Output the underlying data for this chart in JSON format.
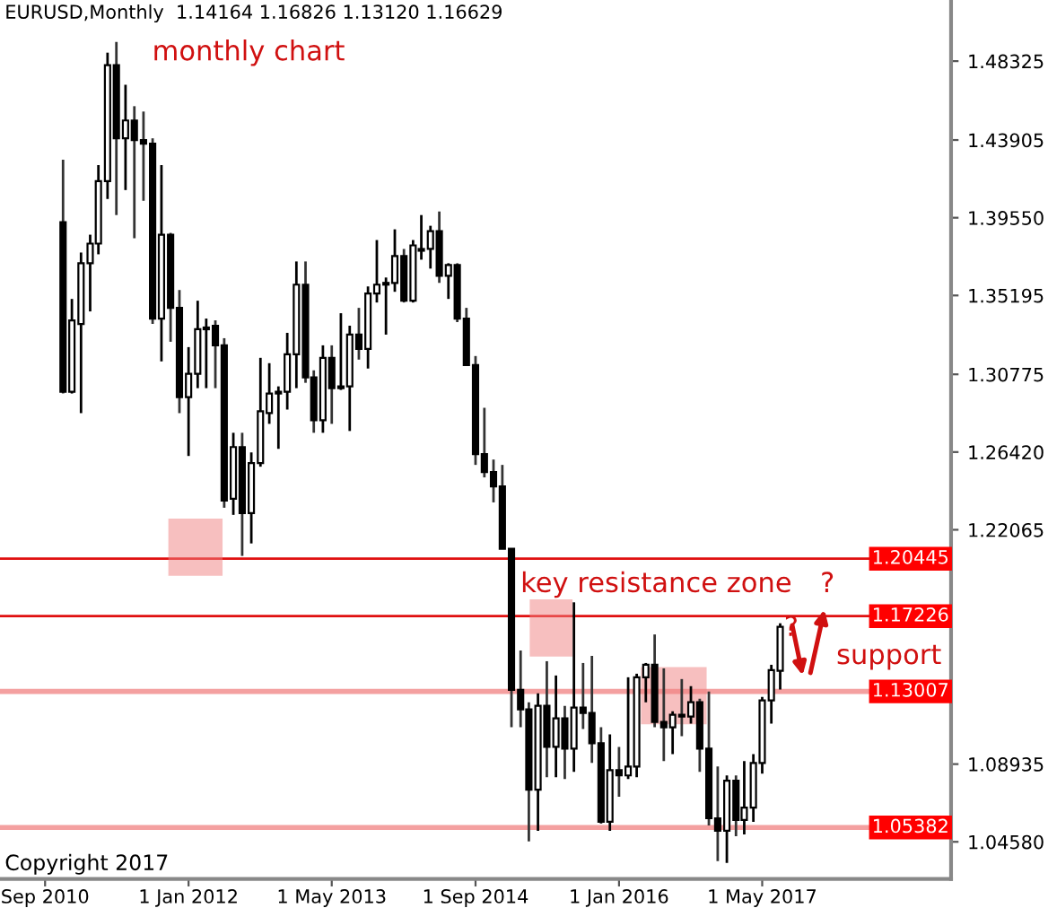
{
  "chart_data": {
    "type": "candlestick",
    "title": "EURUSD,Monthly  1.14164 1.16826 1.13120 1.16629",
    "x": [
      "2010-11",
      "2010-12",
      "2011-01",
      "2011-02",
      "2011-03",
      "2011-04",
      "2011-05",
      "2011-06",
      "2011-07",
      "2011-08",
      "2011-09",
      "2011-10",
      "2011-11",
      "2011-12",
      "2012-01",
      "2012-02",
      "2012-03",
      "2012-04",
      "2012-05",
      "2012-06",
      "2012-07",
      "2012-08",
      "2012-09",
      "2012-10",
      "2012-11",
      "2012-12",
      "2013-01",
      "2013-02",
      "2013-03",
      "2013-04",
      "2013-05",
      "2013-06",
      "2013-07",
      "2013-08",
      "2013-09",
      "2013-10",
      "2013-11",
      "2013-12",
      "2014-01",
      "2014-02",
      "2014-03",
      "2014-04",
      "2014-05",
      "2014-06",
      "2014-07",
      "2014-08",
      "2014-09",
      "2014-10",
      "2014-11",
      "2014-12",
      "2015-01",
      "2015-02",
      "2015-03",
      "2015-04",
      "2015-05",
      "2015-06",
      "2015-07",
      "2015-08",
      "2015-09",
      "2015-10",
      "2015-11",
      "2015-12",
      "2016-01",
      "2016-02",
      "2016-03",
      "2016-04",
      "2016-05",
      "2016-06",
      "2016-07",
      "2016-08",
      "2016-09",
      "2016-10",
      "2016-11",
      "2016-12",
      "2017-01",
      "2017-02",
      "2017-03",
      "2017-04",
      "2017-05",
      "2017-06",
      "2017-07"
    ],
    "ohlc": [
      [
        1.393,
        1.428,
        1.297,
        1.298
      ],
      [
        1.298,
        1.35,
        1.297,
        1.338
      ],
      [
        1.336,
        1.376,
        1.286,
        1.37
      ],
      [
        1.37,
        1.386,
        1.343,
        1.381
      ],
      [
        1.381,
        1.425,
        1.375,
        1.416
      ],
      [
        1.416,
        1.488,
        1.406,
        1.481
      ],
      [
        1.481,
        1.494,
        1.397,
        1.44
      ],
      [
        1.44,
        1.47,
        1.411,
        1.45
      ],
      [
        1.45,
        1.458,
        1.384,
        1.439
      ],
      [
        1.439,
        1.455,
        1.405,
        1.437
      ],
      [
        1.437,
        1.44,
        1.336,
        1.339
      ],
      [
        1.339,
        1.425,
        1.315,
        1.386
      ],
      [
        1.386,
        1.387,
        1.326,
        1.345
      ],
      [
        1.345,
        1.355,
        1.286,
        1.295
      ],
      [
        1.295,
        1.323,
        1.262,
        1.308
      ],
      [
        1.308,
        1.349,
        1.3,
        1.333
      ],
      [
        1.333,
        1.339,
        1.3,
        1.334
      ],
      [
        1.335,
        1.338,
        1.3,
        1.324
      ],
      [
        1.324,
        1.328,
        1.233,
        1.237
      ],
      [
        1.238,
        1.275,
        1.229,
        1.267
      ],
      [
        1.267,
        1.275,
        1.206,
        1.23
      ],
      [
        1.23,
        1.264,
        1.213,
        1.258
      ],
      [
        1.258,
        1.317,
        1.256,
        1.287
      ],
      [
        1.286,
        1.314,
        1.28,
        1.297
      ],
      [
        1.297,
        1.301,
        1.266,
        1.298
      ],
      [
        1.298,
        1.331,
        1.288,
        1.319
      ],
      [
        1.319,
        1.371,
        1.3,
        1.358
      ],
      [
        1.358,
        1.371,
        1.303,
        1.306
      ],
      [
        1.306,
        1.31,
        1.275,
        1.282
      ],
      [
        1.282,
        1.324,
        1.275,
        1.317
      ],
      [
        1.317,
        1.324,
        1.28,
        1.3
      ],
      [
        1.3,
        1.342,
        1.299,
        1.301
      ],
      [
        1.301,
        1.335,
        1.276,
        1.33
      ],
      [
        1.33,
        1.345,
        1.316,
        1.322
      ],
      [
        1.322,
        1.357,
        1.311,
        1.353
      ],
      [
        1.353,
        1.383,
        1.348,
        1.358
      ],
      [
        1.358,
        1.362,
        1.33,
        1.359
      ],
      [
        1.359,
        1.389,
        1.354,
        1.374
      ],
      [
        1.374,
        1.378,
        1.348,
        1.349
      ],
      [
        1.349,
        1.383,
        1.348,
        1.38
      ],
      [
        1.377,
        1.397,
        1.372,
        1.378
      ],
      [
        1.378,
        1.391,
        1.367,
        1.388
      ],
      [
        1.388,
        1.399,
        1.359,
        1.363
      ],
      [
        1.363,
        1.37,
        1.35,
        1.369
      ],
      [
        1.369,
        1.37,
        1.337,
        1.339
      ],
      [
        1.339,
        1.345,
        1.313,
        1.313
      ],
      [
        1.313,
        1.318,
        1.257,
        1.263
      ],
      [
        1.263,
        1.289,
        1.25,
        1.253
      ],
      [
        1.253,
        1.26,
        1.236,
        1.245
      ],
      [
        1.245,
        1.257,
        1.21,
        1.21
      ],
      [
        1.21,
        1.21,
        1.11,
        1.131
      ],
      [
        1.131,
        1.153,
        1.11,
        1.12
      ],
      [
        1.12,
        1.124,
        1.046,
        1.075
      ],
      [
        1.075,
        1.129,
        1.052,
        1.122
      ],
      [
        1.122,
        1.147,
        1.082,
        1.099
      ],
      [
        1.099,
        1.139,
        1.082,
        1.115
      ],
      [
        1.115,
        1.122,
        1.081,
        1.098
      ],
      [
        1.098,
        1.18,
        1.085,
        1.121
      ],
      [
        1.121,
        1.146,
        1.109,
        1.118
      ],
      [
        1.118,
        1.15,
        1.09,
        1.101
      ],
      [
        1.101,
        1.11,
        1.056,
        1.057
      ],
      [
        1.057,
        1.106,
        1.052,
        1.086
      ],
      [
        1.086,
        1.099,
        1.071,
        1.083
      ],
      [
        1.083,
        1.138,
        1.081,
        1.088
      ],
      [
        1.088,
        1.14,
        1.082,
        1.138
      ],
      [
        1.138,
        1.146,
        1.124,
        1.145
      ],
      [
        1.145,
        1.162,
        1.11,
        1.113
      ],
      [
        1.113,
        1.143,
        1.091,
        1.11
      ],
      [
        1.11,
        1.119,
        1.095,
        1.117
      ],
      [
        1.117,
        1.137,
        1.105,
        1.116
      ],
      [
        1.116,
        1.133,
        1.112,
        1.124
      ],
      [
        1.124,
        1.126,
        1.085,
        1.098
      ],
      [
        1.098,
        1.13,
        1.055,
        1.059
      ],
      [
        1.059,
        1.088,
        1.035,
        1.052
      ],
      [
        1.052,
        1.083,
        1.034,
        1.08
      ],
      [
        1.08,
        1.083,
        1.049,
        1.058
      ],
      [
        1.058,
        1.091,
        1.05,
        1.065
      ],
      [
        1.065,
        1.095,
        1.057,
        1.09
      ],
      [
        1.09,
        1.127,
        1.084,
        1.125
      ],
      [
        1.125,
        1.145,
        1.112,
        1.142
      ],
      [
        1.14164,
        1.16826,
        1.1312,
        1.16629
      ]
    ],
    "xlim": [
      "2010-04",
      "2019-02"
    ],
    "xticks": [
      {
        "value": "2010-09",
        "label": "Sep 2010"
      },
      {
        "value": "2012-01",
        "label": "1 Jan 2012"
      },
      {
        "value": "2013-05",
        "label": "1 May 2013"
      },
      {
        "value": "2014-09",
        "label": "1 Sep 2014"
      },
      {
        "value": "2016-01",
        "label": "1 Jan 2016"
      },
      {
        "value": "2017-05",
        "label": "1 May 2017"
      }
    ],
    "ylim": [
      1.025,
      1.5175
    ],
    "yticks": [
      {
        "value": 1.48325,
        "label": "1.48325"
      },
      {
        "value": 1.43905,
        "label": "1.43905"
      },
      {
        "value": 1.3955,
        "label": "1.39550"
      },
      {
        "value": 1.35195,
        "label": "1.35195"
      },
      {
        "value": 1.30775,
        "label": "1.30775"
      },
      {
        "value": 1.2642,
        "label": "1.26420"
      },
      {
        "value": 1.22065,
        "label": "1.22065"
      },
      {
        "value": 1.08935,
        "label": "1.08935"
      },
      {
        "value": 1.0458,
        "label": "1.04580"
      }
    ],
    "ref_lines": [
      {
        "axis": "y",
        "value": 1.20445,
        "label": "1.20445",
        "color": "#e01010"
      },
      {
        "axis": "y",
        "value": 1.17226,
        "label": "1.17226",
        "color": "#e01010"
      },
      {
        "axis": "y",
        "value": 1.13007,
        "label": "1.13007",
        "color": "#f4a0a0"
      },
      {
        "axis": "y",
        "value": 1.05382,
        "label": "1.05382",
        "color": "#f4a0a0"
      }
    ],
    "annotations": [
      "monthly chart",
      "Copyright 2017",
      "key resistance zone",
      "?",
      "?",
      "support"
    ],
    "grid": false
  }
}
